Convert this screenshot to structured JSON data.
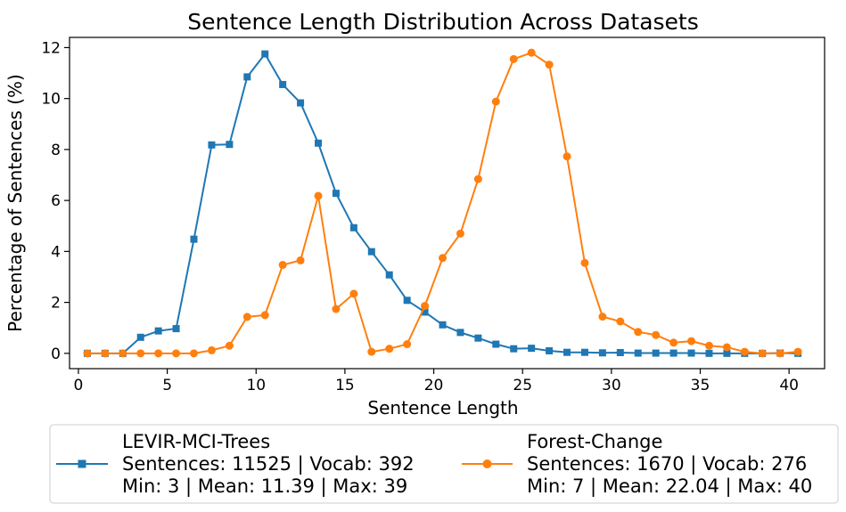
{
  "chart_data": {
    "type": "line",
    "title": "Sentence Length Distribution Across Datasets",
    "xlabel": "Sentence Length",
    "ylabel": "Percentage of Sentences (%)",
    "xlim": [
      -0.5,
      42
    ],
    "ylim": [
      -0.6,
      12.4
    ],
    "xticks": [
      0,
      5,
      10,
      15,
      20,
      25,
      30,
      35,
      40
    ],
    "yticks": [
      0,
      2,
      4,
      6,
      8,
      10,
      12
    ],
    "grid": false,
    "legend_placement": "below",
    "x": [
      0.5,
      1.5,
      2.5,
      3.5,
      4.5,
      5.5,
      6.5,
      7.5,
      8.5,
      9.5,
      10.5,
      11.5,
      12.5,
      13.5,
      14.5,
      15.5,
      16.5,
      17.5,
      18.5,
      19.5,
      20.5,
      21.5,
      22.5,
      23.5,
      24.5,
      25.5,
      26.5,
      27.5,
      28.5,
      29.5,
      30.5,
      31.5,
      32.5,
      33.5,
      34.5,
      35.5,
      36.5,
      37.5,
      38.5,
      39.5,
      40.5
    ],
    "series": [
      {
        "name": "LEVIR-MCI-Trees",
        "legend_lines": [
          "LEVIR-MCI-Trees",
          "Sentences: 11525 | Vocab: 392",
          "Min: 3 | Mean: 11.39 | Max: 39"
        ],
        "color": "#1f77b4",
        "marker": "square",
        "values": [
          0,
          0,
          0,
          0.63,
          0.88,
          0.97,
          4.48,
          8.18,
          8.2,
          10.85,
          11.75,
          10.55,
          9.83,
          8.25,
          6.28,
          4.93,
          3.99,
          3.08,
          2.08,
          1.62,
          1.12,
          0.82,
          0.6,
          0.36,
          0.18,
          0.2,
          0.1,
          0.04,
          0.04,
          0.02,
          0.03,
          0.01,
          0.01,
          0.01,
          0.01,
          0,
          0,
          0,
          0,
          0.01,
          0
        ]
      },
      {
        "name": "Forest-Change",
        "legend_lines": [
          "Forest-Change",
          "Sentences: 1670 | Vocab: 276",
          "Min: 7 | Mean: 22.04 | Max: 40"
        ],
        "color": "#ff7f0e",
        "marker": "circle",
        "values": [
          0,
          0,
          0,
          0,
          0,
          0,
          0,
          0.12,
          0.3,
          1.43,
          1.5,
          3.47,
          3.65,
          6.18,
          1.74,
          2.34,
          0.06,
          0.18,
          0.36,
          1.86,
          3.74,
          4.7,
          6.84,
          9.88,
          11.55,
          11.8,
          11.33,
          7.73,
          3.55,
          1.44,
          1.25,
          0.84,
          0.72,
          0.42,
          0.48,
          0.3,
          0.24,
          0.06,
          0,
          0,
          0.06
        ]
      }
    ]
  }
}
